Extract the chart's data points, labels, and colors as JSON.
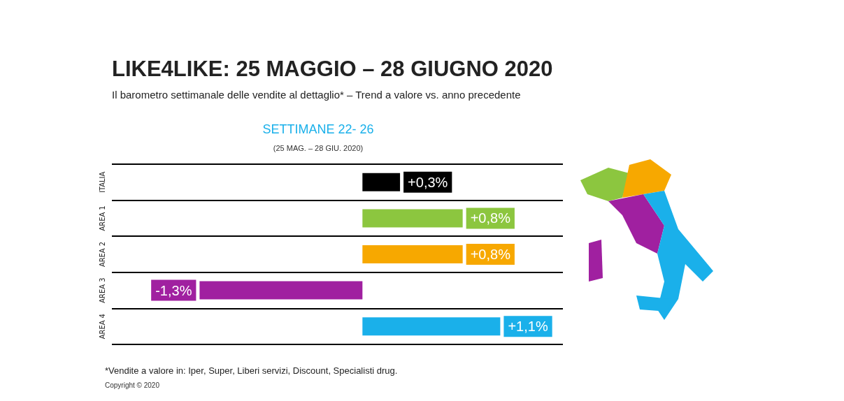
{
  "chart_data": {
    "type": "bar",
    "orientation": "horizontal",
    "title": "LIKE4LIKE: 25 MAGGIO – 28 GIUGNO 2020",
    "subtitle": "Il barometro settimanale delle vendite al dettaglio* – Trend a valore vs. anno precedente",
    "categories": [
      "ITALIA",
      "AREA 1",
      "AREA 2",
      "AREA 3",
      "AREA 4"
    ],
    "values": [
      0.3,
      0.8,
      0.8,
      -1.3,
      1.1
    ],
    "colors": [
      "#000000",
      "#8cc63f",
      "#f7a800",
      "#a020a0",
      "#1ab0ea"
    ],
    "value_labels": [
      "+0,3%",
      "+0,8%",
      "+0,8%",
      "-1,3%",
      "+1,1%"
    ],
    "xlim": [
      -2,
      1.6
    ],
    "tick_labels": "y",
    "grid": "y",
    "annotations": [
      "SETTIMANE 22- 26",
      "(25 MAG. – 28 GIU. 2020)",
      "*Vendite a valore in: Iper, Super, Liberi servizi, Discount, Specialisti drug.",
      "Copyright © 2020"
    ]
  }
}
